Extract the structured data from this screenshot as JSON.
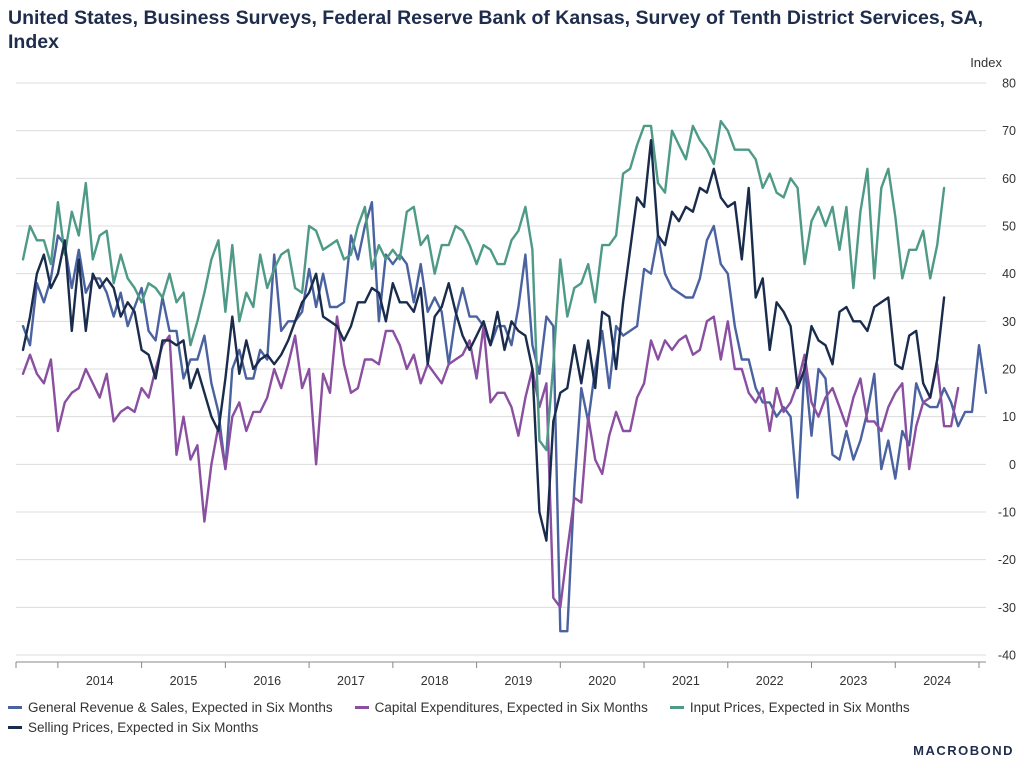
{
  "title": "United States, Business Surveys, Federal Reserve Bank of Kansas, Survey of Tenth District Services, SA, Index",
  "brand": "MACROBOND",
  "chart_data": {
    "type": "line",
    "ylabel": "Index",
    "ylim": [
      -40,
      80
    ],
    "yticks": [
      -40,
      -30,
      -20,
      -10,
      0,
      10,
      20,
      30,
      40,
      50,
      60,
      70,
      80
    ],
    "xlim": [
      "2013-07",
      "2025-02"
    ],
    "year_labels": [
      "2014",
      "2015",
      "2016",
      "2017",
      "2018",
      "2019",
      "2020",
      "2021",
      "2022",
      "2023",
      "2024"
    ],
    "grid": true,
    "legend": "bottom",
    "colors": {
      "General Revenue & Sales, Expected in Six Months": "#4a62a0",
      "Capital Expenditures, Expected in Six Months": "#8a4fa0",
      "Input Prices, Expected in Six Months": "#4e9a86",
      "Selling Prices, Expected in Six Months": "#1a2c4c"
    },
    "series": [
      {
        "name": "General Revenue & Sales, Expected in Six Months",
        "start": "2013-08",
        "values": [
          29,
          25,
          38,
          34,
          39,
          48,
          46,
          37,
          45,
          36,
          39,
          39,
          36,
          31,
          36,
          29,
          33,
          37,
          28,
          26,
          35,
          28,
          28,
          18,
          22,
          22,
          27,
          17,
          11,
          -1,
          20,
          24,
          18,
          18,
          24,
          22,
          44,
          28,
          30,
          30,
          32,
          41,
          33,
          40,
          33,
          33,
          34,
          48,
          43,
          50,
          55,
          30,
          44,
          42,
          44,
          42,
          34,
          42,
          32,
          35,
          32,
          21,
          31,
          37,
          31,
          31,
          29,
          25,
          29,
          29,
          25,
          33,
          44,
          25,
          19,
          31,
          29,
          -35,
          -35,
          -5,
          16,
          9,
          20,
          28,
          16,
          29,
          27,
          28,
          29,
          41,
          40,
          48,
          40,
          37,
          36,
          35,
          35,
          39,
          47,
          50,
          42,
          40,
          29,
          22,
          22,
          16,
          13,
          13,
          10,
          12,
          10,
          -7,
          21,
          6,
          20,
          18,
          2,
          1,
          7,
          1,
          5,
          11,
          19,
          -1,
          5,
          -3,
          7,
          4,
          17,
          13,
          12,
          12,
          16,
          13,
          8,
          11,
          11,
          25,
          15
        ]
      },
      {
        "name": "Capital Expenditures, Expected in Six Months",
        "start": "2013-08",
        "values": [
          19,
          23,
          19,
          17,
          22,
          7,
          13,
          15,
          16,
          20,
          17,
          14,
          19,
          9,
          11,
          12,
          11,
          16,
          14,
          20,
          25,
          27,
          2,
          10,
          1,
          4,
          -12,
          0,
          8,
          -1,
          10,
          13,
          7,
          11,
          11,
          14,
          20,
          16,
          21,
          27,
          16,
          20,
          0,
          19,
          15,
          31,
          21,
          15,
          16,
          22,
          22,
          21,
          28,
          28,
          25,
          20,
          23,
          17,
          21,
          19,
          17,
          21,
          22,
          23,
          26,
          18,
          29,
          13,
          15,
          15,
          12,
          6,
          14,
          20,
          12,
          17,
          -28,
          -30,
          -18,
          -7,
          -8,
          10,
          1,
          -2,
          6,
          11,
          7,
          7,
          14,
          17,
          26,
          22,
          26,
          24,
          26,
          27,
          23,
          24,
          30,
          31,
          22,
          30,
          20,
          20,
          15,
          13,
          16,
          7,
          16,
          11,
          13,
          17,
          23,
          13,
          10,
          14,
          16,
          12,
          8,
          14,
          18,
          9,
          9,
          7,
          12,
          15,
          17,
          -1,
          8,
          13,
          14,
          21,
          8,
          8,
          16
        ]
      },
      {
        "name": "Input Prices, Expected in Six Months",
        "start": "2013-08",
        "values": [
          43,
          50,
          47,
          47,
          42,
          55,
          44,
          53,
          48,
          59,
          43,
          48,
          49,
          38,
          44,
          39,
          37,
          34,
          38,
          37,
          35,
          40,
          34,
          36,
          25,
          30,
          36,
          43,
          47,
          32,
          46,
          30,
          36,
          33,
          44,
          37,
          41,
          44,
          45,
          37,
          36,
          50,
          49,
          45,
          46,
          47,
          43,
          44,
          50,
          54,
          41,
          46,
          43,
          45,
          43,
          53,
          54,
          46,
          48,
          40,
          46,
          46,
          50,
          49,
          46,
          42,
          46,
          45,
          42,
          42,
          47,
          49,
          54,
          45,
          5,
          3,
          21,
          43,
          31,
          37,
          38,
          42,
          34,
          46,
          46,
          48,
          61,
          62,
          67,
          71,
          71,
          59,
          57,
          70,
          67,
          64,
          71,
          68,
          66,
          63,
          72,
          70,
          66,
          66,
          66,
          64,
          58,
          61,
          57,
          56,
          60,
          58,
          42,
          51,
          54,
          50,
          54,
          45,
          54,
          37,
          53,
          62,
          39,
          58,
          62,
          52,
          39,
          45,
          45,
          49,
          39,
          46,
          58
        ]
      },
      {
        "name": "Selling Prices, Expected in Six Months",
        "start": "2013-08",
        "values": [
          24,
          31,
          40,
          44,
          37,
          40,
          47,
          28,
          43,
          28,
          40,
          37,
          39,
          37,
          31,
          34,
          32,
          24,
          23,
          18,
          26,
          26,
          25,
          26,
          16,
          20,
          15,
          10,
          7,
          18,
          31,
          19,
          26,
          20,
          22,
          23,
          21,
          23,
          26,
          30,
          34,
          36,
          40,
          31,
          30,
          29,
          26,
          29,
          34,
          34,
          37,
          36,
          30,
          38,
          34,
          34,
          32,
          37,
          21,
          31,
          33,
          38,
          32,
          27,
          24,
          27,
          30,
          25,
          32,
          24,
          30,
          28,
          27,
          20,
          -10,
          -16,
          9,
          15,
          16,
          25,
          17,
          26,
          16,
          32,
          31,
          20,
          34,
          45,
          56,
          54,
          68,
          48,
          46,
          53,
          51,
          54,
          53,
          58,
          57,
          62,
          56,
          54,
          55,
          43,
          58,
          35,
          39,
          24,
          34,
          32,
          29,
          16,
          20,
          29,
          26,
          25,
          21,
          32,
          33,
          30,
          30,
          28,
          33,
          34,
          35,
          21,
          20,
          27,
          28,
          17,
          14,
          22,
          35
        ]
      }
    ]
  }
}
